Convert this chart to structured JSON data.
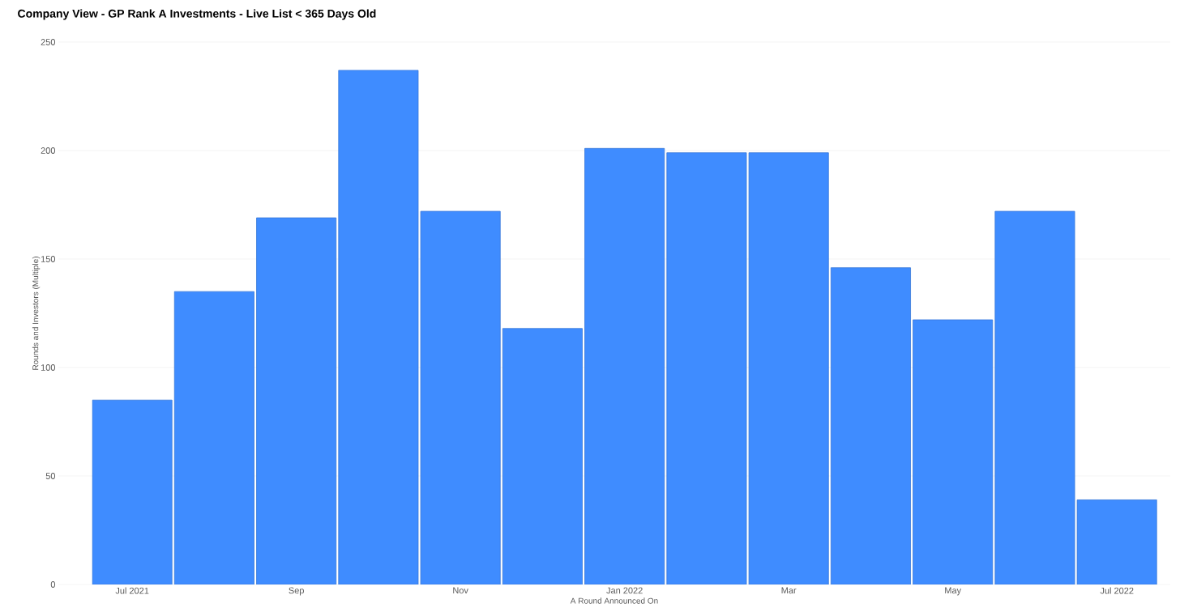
{
  "chart_data": {
    "type": "bar",
    "title": "Company View - GP Rank A Investments - Live List < 365 Days Old",
    "xlabel": "A Round Announced On",
    "ylabel": "Rounds and Investors (Multiple)",
    "categories": [
      "Jul 2021",
      null,
      "Sep",
      null,
      "Nov",
      null,
      "Jan 2022",
      null,
      "Mar",
      null,
      "May",
      null,
      "Jul 2022"
    ],
    "values": [
      85,
      135,
      169,
      237,
      172,
      118,
      201,
      199,
      199,
      146,
      122,
      172,
      39
    ],
    "color": "#3f8cff",
    "ylim": [
      0,
      250
    ],
    "yticks": [
      0,
      50,
      100,
      150,
      200,
      250
    ],
    "grid": "y"
  }
}
